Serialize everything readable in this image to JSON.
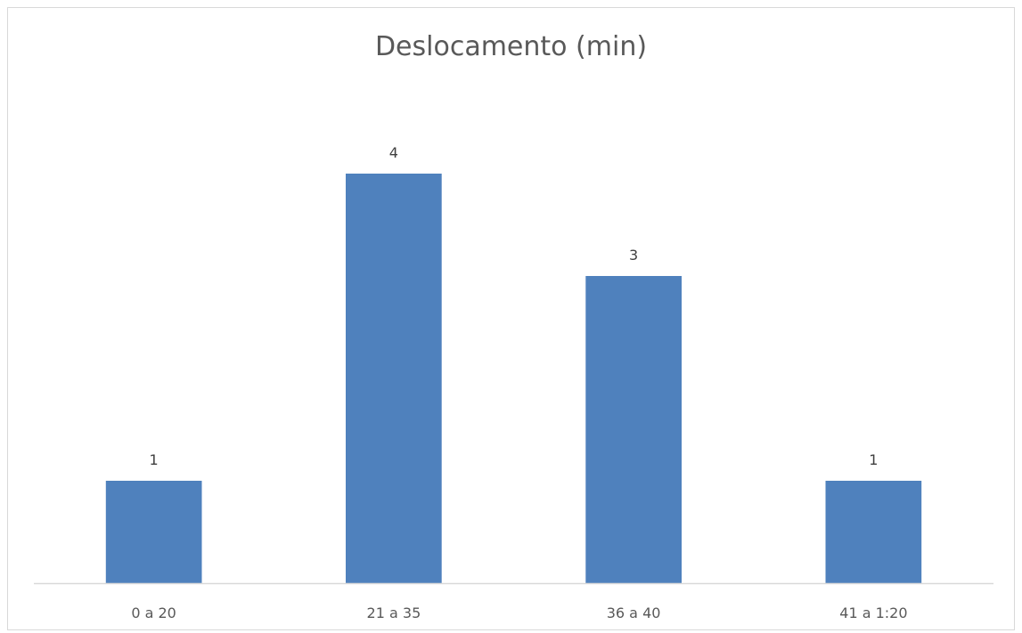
{
  "chart_data": {
    "type": "bar",
    "title": "Deslocamento (min)",
    "categories": [
      "0 a 20",
      "21 a 35",
      "36 a 40",
      "41 a 1:20"
    ],
    "values": [
      1,
      4,
      3,
      1
    ],
    "xlabel": "",
    "ylabel": "",
    "ylim": [
      0,
      4.4
    ],
    "grid": false,
    "legend": "none",
    "data_labels": true,
    "bar_color": "#4f81bd",
    "axis_color": "#d9d9d9"
  }
}
